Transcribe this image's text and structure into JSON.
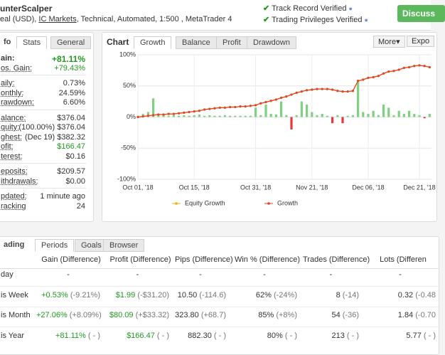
{
  "header": {
    "title": "unterScalper",
    "subtitle": [
      "eal (USD), ",
      "IC Markets",
      ", Technical, Automated, 1:500 , MetaTrader 4"
    ],
    "badges": [
      "Track Record Verified",
      "Trading Privileges Verified"
    ],
    "button": "Discuss"
  },
  "info": {
    "tabs": [
      "fo",
      "Stats",
      "General"
    ],
    "groups": [
      [
        {
          "label": "ain:",
          "value": "+81.11%"
        },
        {
          "label": "os. Gain:",
          "value": "+79.43%"
        }
      ],
      [
        {
          "label": "aily:",
          "value": "0.73%"
        },
        {
          "label": "onthly:",
          "value": "24.59%"
        },
        {
          "label": "rawdown:",
          "value": "6.60%"
        }
      ],
      [
        {
          "label": "alance:",
          "value": "$376.04"
        },
        {
          "label": "quity:",
          "value": "(100.00%) $376.04"
        },
        {
          "label": "ghest:",
          "value": "(Dec 19) $382.32"
        },
        {
          "label": "ofit:",
          "value": "$166.47"
        },
        {
          "label": "terest:",
          "value": "$0.16"
        }
      ],
      [
        {
          "label": "eposits:",
          "value": "$209.57"
        },
        {
          "label": "ithdrawals:",
          "value": "$0.00"
        }
      ],
      [
        {
          "label": "pdated:",
          "value": "1 minute ago"
        },
        {
          "label": "racking",
          "value": "24"
        }
      ]
    ]
  },
  "chart_panel": {
    "title": "Chart",
    "tabs": [
      "Growth",
      "Balance",
      "Profit",
      "Drawdown"
    ],
    "more": "More",
    "export": "Expo"
  },
  "chart_data": {
    "type": "line",
    "categories": [
      "Oct 01, '18",
      null,
      null,
      null,
      null,
      null,
      null,
      null,
      null,
      null,
      null,
      "Oct 15, '18",
      null,
      null,
      null,
      null,
      null,
      null,
      null,
      null,
      null,
      null,
      null,
      "Oct 31, '18",
      null,
      null,
      null,
      null,
      null,
      null,
      null,
      null,
      null,
      null,
      "Nov 21, '18",
      null,
      null,
      null,
      null,
      null,
      null,
      null,
      null,
      null,
      null,
      "Dec 06, '18",
      null,
      null,
      null,
      null,
      null,
      null,
      null,
      null,
      null,
      "Dec 21, '18",
      null,
      null
    ],
    "series": [
      {
        "name": "Equity Growth",
        "color": "#f2b200",
        "values": [
          0,
          1,
          2,
          3,
          4,
          4,
          5,
          5,
          6,
          7,
          8,
          9,
          10,
          12,
          13,
          14,
          15,
          15,
          16,
          16,
          17,
          17,
          18,
          19,
          22,
          24,
          26,
          28,
          31,
          33,
          36,
          39,
          41,
          43,
          44,
          45,
          45,
          45,
          44,
          42,
          41,
          41,
          42,
          58,
          60,
          63,
          64,
          66,
          70,
          73,
          74,
          76,
          79,
          80,
          82,
          83,
          82,
          80
        ]
      },
      {
        "name": "Growth",
        "color": "#e2452c",
        "values": [
          0,
          1,
          2,
          3,
          4,
          4,
          5,
          5,
          6,
          7,
          8,
          9,
          10,
          12,
          13,
          14,
          15,
          15,
          16,
          16,
          17,
          17,
          18,
          19,
          22,
          24,
          26,
          28,
          31,
          33,
          36,
          39,
          41,
          43,
          44,
          45,
          45,
          45,
          44,
          42,
          41,
          41,
          42,
          58,
          60,
          63,
          64,
          66,
          70,
          73,
          74,
          76,
          79,
          80,
          82,
          83,
          82,
          80
        ]
      }
    ],
    "bars": {
      "values": [
        2,
        5,
        8,
        30,
        3,
        4,
        2,
        3,
        2,
        3,
        2,
        3,
        4,
        2,
        3,
        2,
        2,
        3,
        2,
        2,
        2,
        2,
        2,
        15,
        3,
        20,
        5,
        4,
        25,
        3,
        -20,
        3,
        25,
        20,
        8,
        3,
        5,
        2,
        -10,
        3,
        -10,
        2,
        3,
        60,
        8,
        5,
        10,
        3,
        20,
        15,
        3,
        10,
        5,
        10,
        5,
        3,
        -2,
        5
      ],
      "positive_color": "#7fd07f",
      "negative_color": "#e43a3a"
    },
    "ylim": [
      -100,
      100
    ],
    "yticks": [
      {
        "value": 100,
        "label": "100%"
      },
      {
        "value": 50,
        "label": "50%"
      },
      {
        "value": 0,
        "label": "0%"
      },
      {
        "value": -50,
        "label": "-50%"
      },
      {
        "value": -100,
        "label": "-100%"
      }
    ],
    "grid": true
  },
  "trading": {
    "tabs": [
      "ading",
      "Periods",
      "Goals",
      "Browser"
    ],
    "columns": [
      "Gain (Difference)",
      "Profit (Difference)",
      "Pips (Difference)",
      "Win % (Difference)",
      "Trades (Difference)",
      "Lots (Differen"
    ],
    "rows": [
      {
        "period": "day",
        "cells": [
          [
            "-"
          ],
          [
            "-"
          ],
          [
            "-"
          ],
          [
            "-"
          ],
          [
            "-"
          ],
          [
            "-"
          ]
        ]
      },
      {
        "period": "is Week",
        "cells": [
          [
            "+0.53%",
            "(-9.21%)"
          ],
          [
            "$1.99",
            "(-$31.20)"
          ],
          [
            "10.50",
            "(-114.6)"
          ],
          [
            "62%",
            "(-24%)"
          ],
          [
            "8",
            "(-14)"
          ],
          [
            "0.32",
            "(-0.48"
          ]
        ]
      },
      {
        "period": "is Month",
        "cells": [
          [
            "+27.06%",
            "(+8.09%)"
          ],
          [
            "$80.09",
            "(+$33.32)"
          ],
          [
            "323.80",
            "(+68.7)"
          ],
          [
            "85%",
            "(+8%)"
          ],
          [
            "54",
            "(-36)"
          ],
          [
            "1.84",
            "(-0.70"
          ]
        ]
      },
      {
        "period": "is Year",
        "cells": [
          [
            "+81.11%",
            "( - )"
          ],
          [
            "$166.47",
            "( - )"
          ],
          [
            "882.30",
            "( - )"
          ],
          [
            "80%",
            "( - )"
          ],
          [
            "213",
            "( - )"
          ],
          [
            "5.77",
            "( - )"
          ]
        ]
      }
    ]
  }
}
